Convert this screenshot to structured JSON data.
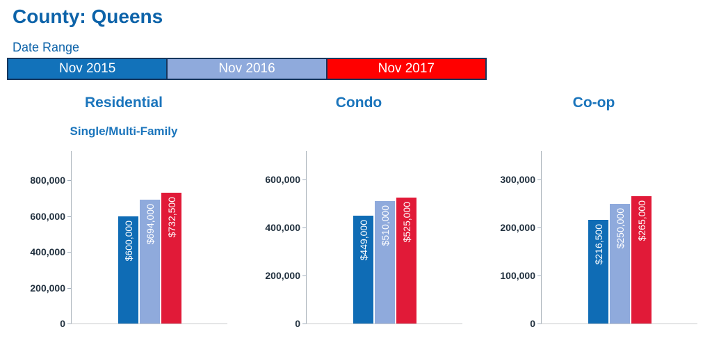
{
  "header": {
    "title": "County: Queens",
    "date_range_label": "Date Range"
  },
  "colors": {
    "heading_blue": "#0D63A9",
    "chart_title_blue": "#1B75BC",
    "legend_border": "#16365D",
    "tick_label": "#22313F",
    "bar_blue": "#0F6CB5",
    "bar_light_blue": "#8FAADC",
    "bar_red": "#E11A38",
    "legend_red": "#FF0000"
  },
  "legend": {
    "items": [
      {
        "label": "Nov 2015",
        "color": "#1272BA"
      },
      {
        "label": "Nov 2016",
        "color": "#8FAADC"
      },
      {
        "label": "Nov 2017",
        "color": "#FF0000"
      }
    ]
  },
  "chart_data": [
    {
      "type": "bar",
      "title": "Residential",
      "subtitle": "Single/Multi-Family",
      "categories": [
        "Nov 2015",
        "Nov 2016",
        "Nov 2017"
      ],
      "values": [
        600000,
        694000,
        732500
      ],
      "bar_labels": [
        "$600,000",
        "$694,000",
        "$732,500"
      ],
      "bar_colors": [
        "#0F6CB5",
        "#8FAADC",
        "#E11A38"
      ],
      "yticks": [
        800000,
        600000,
        400000,
        200000,
        0
      ],
      "ytick_labels": [
        "800,000",
        "600,000",
        "400,000",
        "200,000",
        "0"
      ],
      "ylim": [
        0,
        965000
      ],
      "grid": false,
      "legend_position": "top-shared"
    },
    {
      "type": "bar",
      "title": "Condo",
      "subtitle": "",
      "categories": [
        "Nov 2015",
        "Nov 2016",
        "Nov 2017"
      ],
      "values": [
        449000,
        510000,
        525000
      ],
      "bar_labels": [
        "$449,000",
        "$510,000",
        "$525,000"
      ],
      "bar_colors": [
        "#0F6CB5",
        "#8FAADC",
        "#E11A38"
      ],
      "yticks": [
        600000,
        400000,
        200000,
        0
      ],
      "ytick_labels": [
        "600,000",
        "400,000",
        "200,000",
        "0"
      ],
      "ylim": [
        0,
        720000
      ],
      "grid": false,
      "legend_position": "top-shared"
    },
    {
      "type": "bar",
      "title": "Co-op",
      "subtitle": "",
      "categories": [
        "Nov 2015",
        "Nov 2016",
        "Nov 2017"
      ],
      "values": [
        216500,
        250000,
        265000
      ],
      "bar_labels": [
        "$216,500",
        "$250,000",
        "$265,000"
      ],
      "bar_colors": [
        "#0F6CB5",
        "#8FAADC",
        "#E11A38"
      ],
      "yticks": [
        300000,
        200000,
        100000,
        0
      ],
      "ytick_labels": [
        "300,000",
        "200,000",
        "100,000",
        "0"
      ],
      "ylim": [
        0,
        360000
      ],
      "grid": false,
      "legend_position": "top-shared"
    }
  ]
}
